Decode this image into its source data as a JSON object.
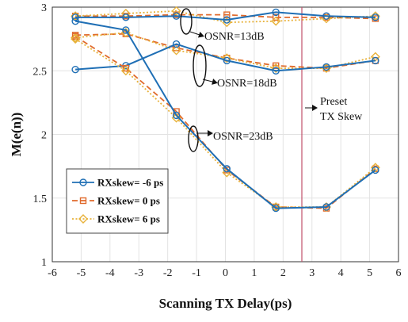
{
  "chart_data": {
    "type": "line",
    "xlabel": "Scanning TX Delay(ps)",
    "ylabel": "M(e(n))",
    "xlim": [
      -6,
      6
    ],
    "ylim": [
      1,
      3
    ],
    "xticks": [
      -6,
      -5,
      -4,
      -3,
      -2,
      -1,
      0,
      1,
      2,
      3,
      4,
      5,
      6
    ],
    "yticks": [
      1,
      1.5,
      2,
      2.5,
      3
    ],
    "ytick_labels": [
      "1",
      "1.5",
      "2",
      "2.5",
      "3"
    ],
    "grid": true,
    "legend_position": "lower-left",
    "series": [
      {
        "name": "RXskew= -6 ps",
        "color": "#1f6fb5",
        "dash": "solid",
        "marker": "circle"
      },
      {
        "name": "RXskew= 0 ps",
        "color": "#e06a2c",
        "dash": "dashed",
        "marker": "square"
      },
      {
        "name": "RXskew= 6 ps",
        "color": "#e8b23a",
        "dash": "dotted",
        "marker": "diamond"
      }
    ],
    "groups": [
      {
        "label": "OSNR=13dB",
        "x": [
          -5.2,
          -3.45,
          -1.7,
          0.05,
          1.75,
          3.5,
          5.2
        ],
        "values": [
          [
            2.92,
            2.92,
            2.93,
            2.9,
            2.96,
            2.93,
            2.92
          ],
          [
            2.93,
            2.93,
            2.94,
            2.94,
            2.92,
            2.92,
            2.91
          ],
          [
            2.93,
            2.95,
            2.97,
            2.88,
            2.89,
            2.91,
            2.93
          ]
        ]
      },
      {
        "label": "OSNR=18dB",
        "x": [
          -5.2,
          -3.45,
          -1.7,
          0.05,
          1.75,
          3.5,
          5.2
        ],
        "values": [
          [
            2.51,
            2.54,
            2.71,
            2.58,
            2.5,
            2.53,
            2.58
          ],
          [
            2.78,
            2.79,
            2.68,
            2.6,
            2.54,
            2.52,
            2.58
          ],
          [
            2.76,
            2.8,
            2.66,
            2.6,
            2.52,
            2.52,
            2.61
          ]
        ]
      },
      {
        "label": "OSNR=23dB",
        "x": [
          -5.2,
          -3.45,
          -1.7,
          0.05,
          1.75,
          3.5,
          5.2
        ],
        "values": [
          [
            2.89,
            2.82,
            2.15,
            1.73,
            1.42,
            1.43,
            1.72
          ],
          [
            2.77,
            2.52,
            2.18,
            1.72,
            1.43,
            1.42,
            1.73
          ],
          [
            2.75,
            2.5,
            2.13,
            1.7,
            1.43,
            1.43,
            1.74
          ]
        ]
      }
    ],
    "vline": {
      "x": 2.65,
      "color": "#c0506a",
      "label_line1": "Preset",
      "label_line2": "TX Skew"
    }
  }
}
